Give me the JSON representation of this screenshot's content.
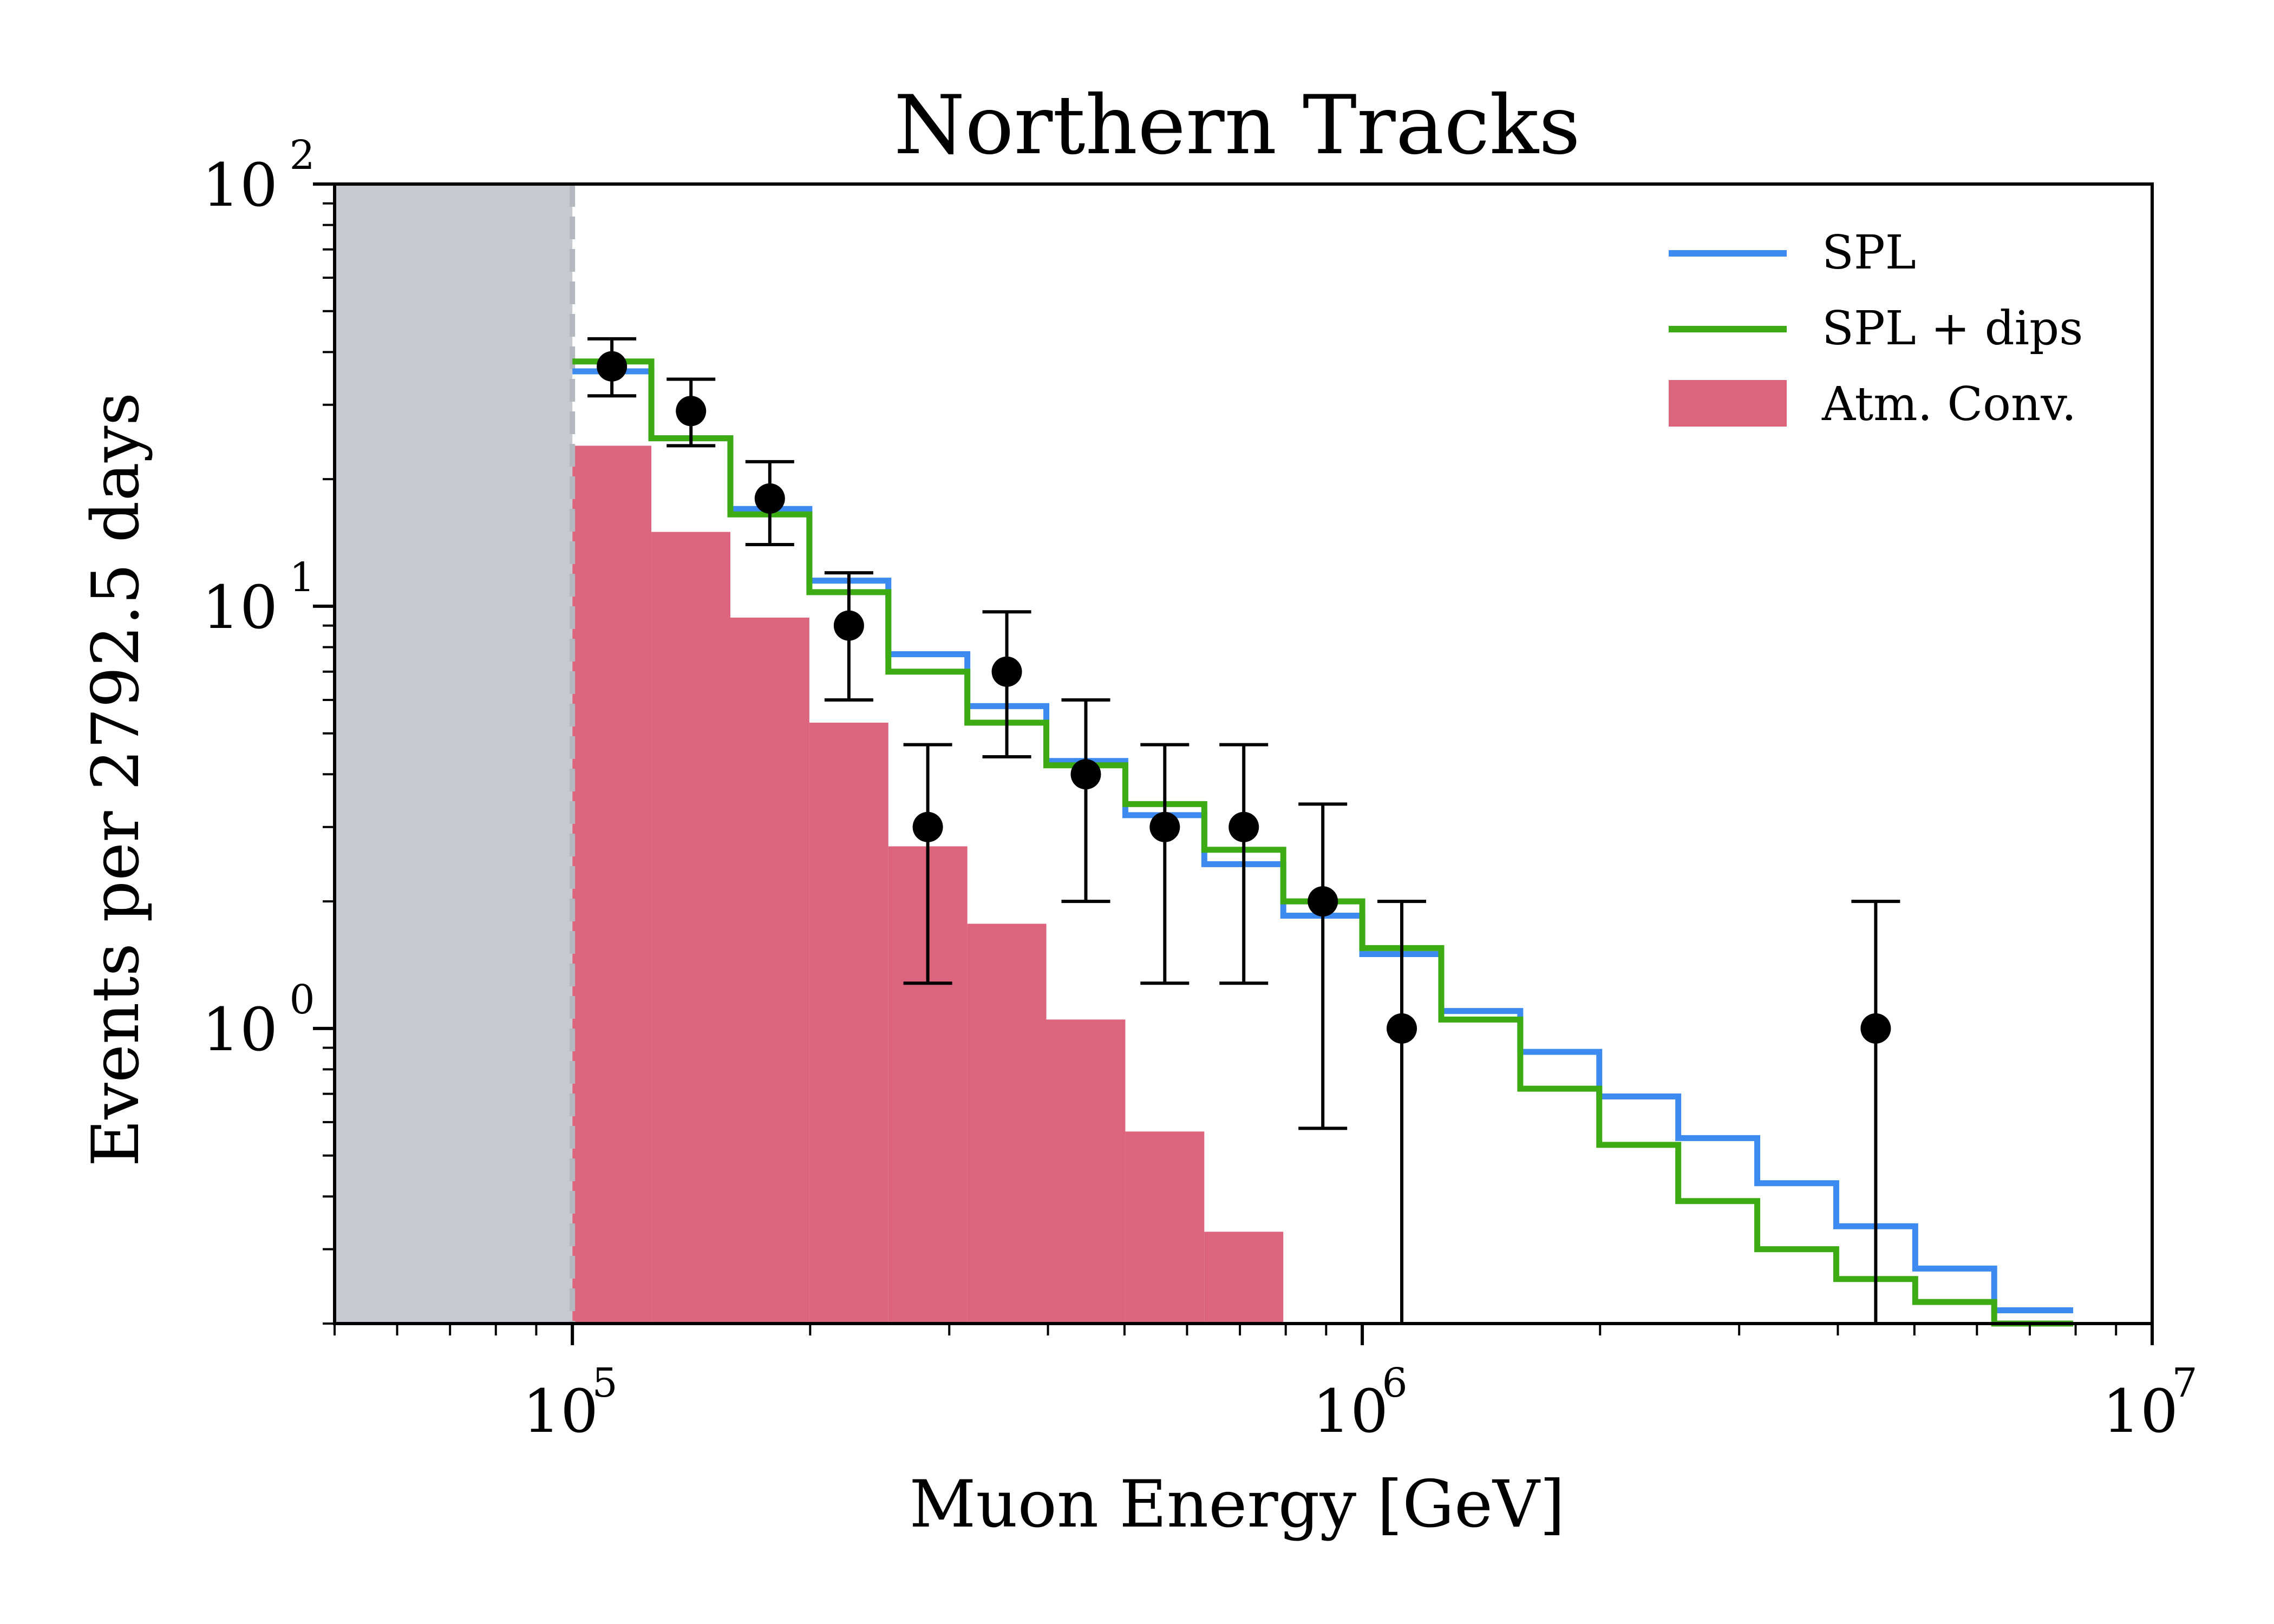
{
  "chart_data": {
    "type": "line",
    "title": "Northern Tracks",
    "xlabel": "Muon Energy [GeV]",
    "ylabel": "Events per 2792.5 days",
    "xscale": "log",
    "yscale": "log",
    "xlim": [
      50000,
      10000000
    ],
    "ylim": [
      0.2,
      100
    ],
    "x_tick_labels": [
      {
        "base": "10",
        "exp": "5",
        "value": 100000
      },
      {
        "base": "10",
        "exp": "6",
        "value": 1000000
      },
      {
        "base": "10",
        "exp": "7",
        "value": 10000000
      }
    ],
    "y_tick_labels": [
      {
        "base": "10",
        "exp": "0",
        "value": 1
      },
      {
        "base": "10",
        "exp": "1",
        "value": 10
      },
      {
        "base": "10",
        "exp": "2",
        "value": 100
      }
    ],
    "excluded_region": {
      "from": 50000,
      "to": 100000,
      "color": "#c5cad1"
    },
    "threshold_line": 100000,
    "bin_edges": [
      100000,
      125890,
      158490,
      199530,
      251190,
      316230,
      398110,
      501190,
      630960,
      794330,
      1000000,
      1258900,
      1584900,
      1995300,
      2511900,
      3162300,
      3981100,
      5011900,
      6309600,
      7943300
    ],
    "series": [
      {
        "name": "SPL",
        "kind": "step",
        "color": "#3d8bf0",
        "values": [
          36,
          25,
          17,
          11.5,
          7.7,
          5.8,
          4.3,
          3.2,
          2.45,
          1.85,
          1.5,
          1.1,
          0.88,
          0.69,
          0.55,
          0.43,
          0.34,
          0.27,
          0.215
        ]
      },
      {
        "name": "SPL + dips",
        "kind": "step",
        "color": "#3cab14",
        "values": [
          38,
          25,
          16.5,
          10.8,
          7,
          5.3,
          4.2,
          3.4,
          2.65,
          2,
          1.55,
          1.05,
          0.72,
          0.53,
          0.39,
          0.3,
          0.255,
          0.225,
          0.2
        ]
      },
      {
        "name": "Atm. Conv.",
        "kind": "filled-step",
        "color": "#dc647c",
        "values": [
          24,
          15,
          9.4,
          5.3,
          2.7,
          1.77,
          1.05,
          0.57,
          0.33
        ]
      }
    ],
    "data_points": {
      "name": "Data",
      "color": "#000000",
      "x": [
        112200,
        141300,
        177800,
        223900,
        281800,
        354800,
        446700,
        562300,
        707900,
        891300,
        1122000,
        4467000
      ],
      "y": [
        37,
        29,
        18,
        9,
        3,
        7,
        4,
        3,
        3,
        2,
        1,
        1
      ],
      "y_low": [
        31.5,
        24,
        14,
        6,
        1.28,
        4.4,
        2,
        1.28,
        1.28,
        0.58,
        0.2,
        0.2
      ],
      "y_high": [
        43,
        34.5,
        22,
        12,
        4.7,
        9.7,
        6,
        4.7,
        4.7,
        3.4,
        2,
        2
      ]
    },
    "legend": {
      "position": "top-right",
      "entries": [
        "SPL",
        "SPL + dips",
        "Atm. Conv."
      ]
    }
  }
}
